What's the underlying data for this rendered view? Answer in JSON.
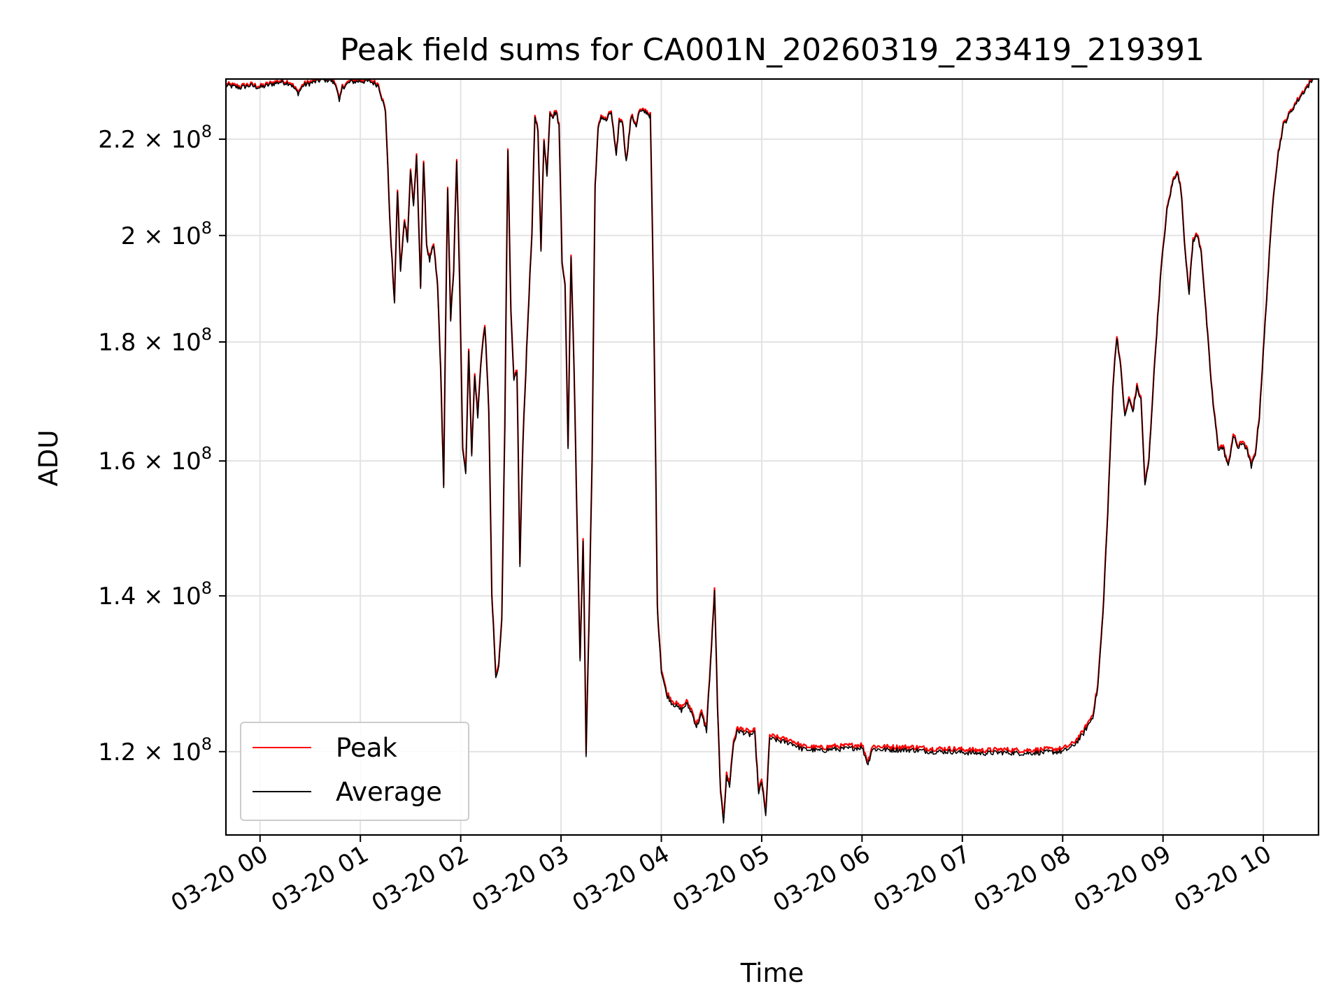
{
  "chart_data": {
    "type": "line",
    "title": "Peak field sums for CA001N_20260319_233419_219391",
    "xlabel": "Time",
    "ylabel": "ADU",
    "yscale": "log",
    "ylim": [
      110500000,
      233500000
    ],
    "xlim_hours": [
      -0.34,
      10.55
    ],
    "grid": true,
    "legend_location": "lower left",
    "x_tick_hours": [
      0,
      1,
      2,
      3,
      4,
      5,
      6,
      7,
      8,
      9,
      10
    ],
    "x_tick_labels": [
      "03-20 00",
      "03-20 01",
      "03-20 02",
      "03-20 03",
      "03-20 04",
      "03-20 05",
      "03-20 06",
      "03-20 07",
      "03-20 08",
      "03-20 09",
      "03-20 10"
    ],
    "y_ticks": [
      {
        "value": 120000000,
        "mantissa": "1.2 × 10",
        "exponent": "8"
      },
      {
        "value": 140000000,
        "mantissa": "1.4 × 10",
        "exponent": "8"
      },
      {
        "value": 160000000,
        "mantissa": "1.6 × 10",
        "exponent": "8"
      },
      {
        "value": 180000000,
        "mantissa": "1.8 × 10",
        "exponent": "8"
      },
      {
        "value": 200000000,
        "mantissa": "2 × 10",
        "exponent": "8"
      },
      {
        "value": 220000000,
        "mantissa": "2.2 × 10",
        "exponent": "8"
      }
    ],
    "series": [
      {
        "name": "Peak",
        "color": "#ff0000",
        "offset": 350000
      },
      {
        "name": "Average",
        "color": "#000000",
        "offset": 0
      }
    ],
    "average_points_hours_adu": [
      [
        -0.34,
        232000000
      ],
      [
        -0.2,
        231500000
      ],
      [
        -0.1,
        232000000
      ],
      [
        0.0,
        231500000
      ],
      [
        0.1,
        232200000
      ],
      [
        0.2,
        232800000
      ],
      [
        0.3,
        232500000
      ],
      [
        0.38,
        230200000
      ],
      [
        0.43,
        232000000
      ],
      [
        0.5,
        232500000
      ],
      [
        0.6,
        233200000
      ],
      [
        0.7,
        233300000
      ],
      [
        0.76,
        232000000
      ],
      [
        0.79,
        228000000
      ],
      [
        0.82,
        231500000
      ],
      [
        0.9,
        232800000
      ],
      [
        1.0,
        233000000
      ],
      [
        1.1,
        232900000
      ],
      [
        1.18,
        232000000
      ],
      [
        1.25,
        226000000
      ],
      [
        1.3,
        200000000
      ],
      [
        1.34,
        187000000
      ],
      [
        1.37,
        209000000
      ],
      [
        1.4,
        193000000
      ],
      [
        1.44,
        203000000
      ],
      [
        1.47,
        199000000
      ],
      [
        1.5,
        213000000
      ],
      [
        1.53,
        206000000
      ],
      [
        1.56,
        216000000
      ],
      [
        1.6,
        190000000
      ],
      [
        1.63,
        215000000
      ],
      [
        1.66,
        198000000
      ],
      [
        1.69,
        195000000
      ],
      [
        1.73,
        198000000
      ],
      [
        1.77,
        190000000
      ],
      [
        1.8,
        175000000
      ],
      [
        1.83,
        156000000
      ],
      [
        1.87,
        209000000
      ],
      [
        1.9,
        184000000
      ],
      [
        1.93,
        193000000
      ],
      [
        1.96,
        215000000
      ],
      [
        1.99,
        190000000
      ],
      [
        2.02,
        162000000
      ],
      [
        2.05,
        158000000
      ],
      [
        2.08,
        178000000
      ],
      [
        2.11,
        161000000
      ],
      [
        2.14,
        174000000
      ],
      [
        2.17,
        167000000
      ],
      [
        2.2,
        176000000
      ],
      [
        2.24,
        183000000
      ],
      [
        2.28,
        168000000
      ],
      [
        2.31,
        140000000
      ],
      [
        2.35,
        129000000
      ],
      [
        2.38,
        130500000
      ],
      [
        2.41,
        137000000
      ],
      [
        2.44,
        165000000
      ],
      [
        2.47,
        217000000
      ],
      [
        2.5,
        185000000
      ],
      [
        2.53,
        173000000
      ],
      [
        2.56,
        175000000
      ],
      [
        2.59,
        144000000
      ],
      [
        2.62,
        163000000
      ],
      [
        2.65,
        175000000
      ],
      [
        2.68,
        188000000
      ],
      [
        2.71,
        200000000
      ],
      [
        2.74,
        225000000
      ],
      [
        2.77,
        222000000
      ],
      [
        2.8,
        197000000
      ],
      [
        2.83,
        220000000
      ],
      [
        2.86,
        212000000
      ],
      [
        2.89,
        226000000
      ],
      [
        2.92,
        225000000
      ],
      [
        2.95,
        226000000
      ],
      [
        2.98,
        223000000
      ],
      [
        3.01,
        195000000
      ],
      [
        3.04,
        190000000
      ],
      [
        3.07,
        162000000
      ],
      [
        3.1,
        196000000
      ],
      [
        3.13,
        175000000
      ],
      [
        3.16,
        150000000
      ],
      [
        3.19,
        131000000
      ],
      [
        3.22,
        148000000
      ],
      [
        3.25,
        119500000
      ],
      [
        3.28,
        137000000
      ],
      [
        3.31,
        160000000
      ],
      [
        3.34,
        210000000
      ],
      [
        3.37,
        222000000
      ],
      [
        3.4,
        225000000
      ],
      [
        3.45,
        224000000
      ],
      [
        3.5,
        226000000
      ],
      [
        3.55,
        216000000
      ],
      [
        3.58,
        224000000
      ],
      [
        3.61,
        224000000
      ],
      [
        3.65,
        215000000
      ],
      [
        3.7,
        225000000
      ],
      [
        3.75,
        223000000
      ],
      [
        3.78,
        226000000
      ],
      [
        3.85,
        226000000
      ],
      [
        3.89,
        225000000
      ],
      [
        3.92,
        190000000
      ],
      [
        3.96,
        138000000
      ],
      [
        4.0,
        130000000
      ],
      [
        4.05,
        127000000
      ],
      [
        4.1,
        126000000
      ],
      [
        4.15,
        125500000
      ],
      [
        4.2,
        125000000
      ],
      [
        4.25,
        125800000
      ],
      [
        4.3,
        124800000
      ],
      [
        4.35,
        123000000
      ],
      [
        4.4,
        124500000
      ],
      [
        4.45,
        122500000
      ],
      [
        4.5,
        133000000
      ],
      [
        4.53,
        140500000
      ],
      [
        4.56,
        125000000
      ],
      [
        4.59,
        115000000
      ],
      [
        4.62,
        112000000
      ],
      [
        4.65,
        117000000
      ],
      [
        4.68,
        116000000
      ],
      [
        4.72,
        121000000
      ],
      [
        4.76,
        122500000
      ],
      [
        4.82,
        122300000
      ],
      [
        4.88,
        122000000
      ],
      [
        4.93,
        122200000
      ],
      [
        4.97,
        115000000
      ],
      [
        5.0,
        116500000
      ],
      [
        5.04,
        112500000
      ],
      [
        5.08,
        121600000
      ],
      [
        5.2,
        121200000
      ],
      [
        5.3,
        121000000
      ],
      [
        5.4,
        120300000
      ],
      [
        5.5,
        120200000
      ],
      [
        5.6,
        120100000
      ],
      [
        5.7,
        120300000
      ],
      [
        5.8,
        120300000
      ],
      [
        5.9,
        120400000
      ],
      [
        6.0,
        120500000
      ],
      [
        6.06,
        118500000
      ],
      [
        6.1,
        120300000
      ],
      [
        6.3,
        120200000
      ],
      [
        6.5,
        120200000
      ],
      [
        6.7,
        120000000
      ],
      [
        6.9,
        120000000
      ],
      [
        7.0,
        119900000
      ],
      [
        7.2,
        119800000
      ],
      [
        7.4,
        119900000
      ],
      [
        7.6,
        119800000
      ],
      [
        7.8,
        119900000
      ],
      [
        8.0,
        120000000
      ],
      [
        8.1,
        120600000
      ],
      [
        8.2,
        122000000
      ],
      [
        8.3,
        124200000
      ],
      [
        8.35,
        127800000
      ],
      [
        8.4,
        137000000
      ],
      [
        8.45,
        152000000
      ],
      [
        8.5,
        172000000
      ],
      [
        8.54,
        181000000
      ],
      [
        8.58,
        175000000
      ],
      [
        8.62,
        167000000
      ],
      [
        8.66,
        170000000
      ],
      [
        8.7,
        168000000
      ],
      [
        8.74,
        172000000
      ],
      [
        8.78,
        170000000
      ],
      [
        8.82,
        156000000
      ],
      [
        8.86,
        160000000
      ],
      [
        8.92,
        177000000
      ],
      [
        8.98,
        193000000
      ],
      [
        9.04,
        205000000
      ],
      [
        9.1,
        211000000
      ],
      [
        9.14,
        213000000
      ],
      [
        9.18,
        209000000
      ],
      [
        9.22,
        197000000
      ],
      [
        9.26,
        189000000
      ],
      [
        9.3,
        199000000
      ],
      [
        9.34,
        200000000
      ],
      [
        9.38,
        197000000
      ],
      [
        9.42,
        187000000
      ],
      [
        9.47,
        175000000
      ],
      [
        9.5,
        169000000
      ],
      [
        9.55,
        162000000
      ],
      [
        9.6,
        162000000
      ],
      [
        9.65,
        159000000
      ],
      [
        9.7,
        164000000
      ],
      [
        9.75,
        162000000
      ],
      [
        9.8,
        163000000
      ],
      [
        9.85,
        161000000
      ],
      [
        9.88,
        159000000
      ],
      [
        9.92,
        161000000
      ],
      [
        9.96,
        167000000
      ],
      [
        10.0,
        178000000
      ],
      [
        10.05,
        193000000
      ],
      [
        10.1,
        208000000
      ],
      [
        10.15,
        217000000
      ],
      [
        10.2,
        223000000
      ],
      [
        10.3,
        227000000
      ],
      [
        10.4,
        230500000
      ],
      [
        10.5,
        233500000
      ]
    ]
  }
}
